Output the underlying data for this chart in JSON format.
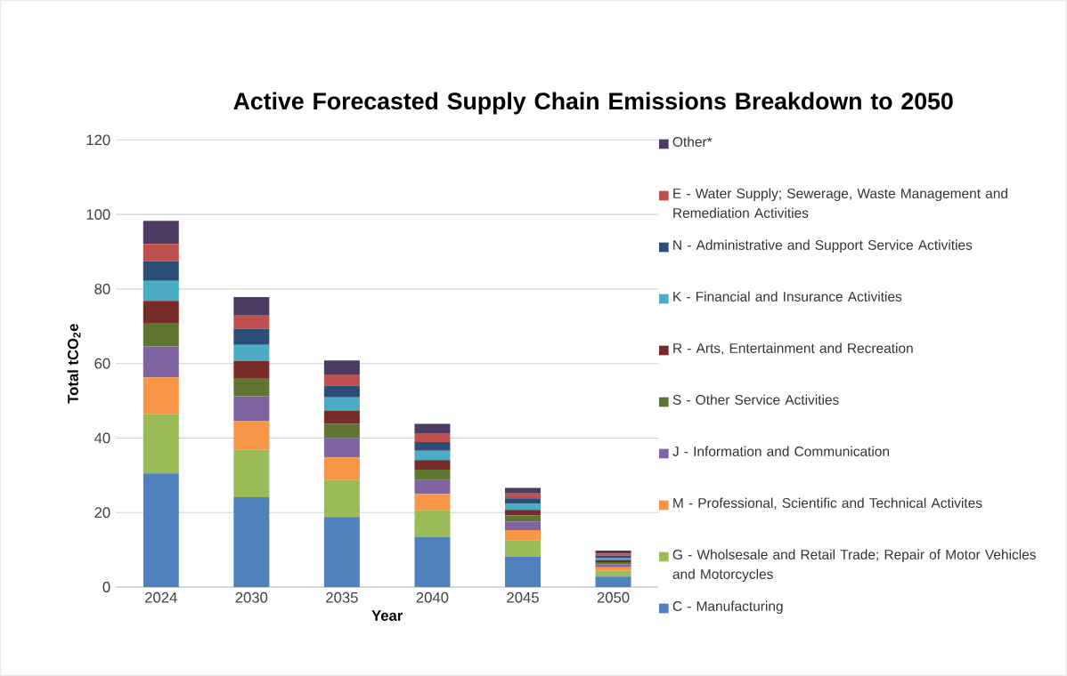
{
  "chart_data": {
    "type": "bar",
    "stacked": true,
    "title": "Active Forecasted Supply Chain Emissions Breakdown to 2050",
    "xlabel": "Year",
    "ylabel": "Total tCO$_{2}$e",
    "categories": [
      "2024",
      "2030",
      "2035",
      "2040",
      "2045",
      "2050"
    ],
    "ylim": [
      0,
      120
    ],
    "yticks": [
      0,
      20,
      40,
      60,
      80,
      100,
      120
    ],
    "grid": "y",
    "legend": "right",
    "series": [
      {
        "name": "C - Manufacturing",
        "color": "#4f81bd",
        "values": [
          30.5,
          24.1,
          18.8,
          13.4,
          8.2,
          2.8
        ]
      },
      {
        "name": "G - Wholsesale and Retail Trade; Repair of Motor Vehicles and Motorcycles",
        "color": "#9bbb59",
        "values": [
          16.0,
          12.7,
          9.9,
          7.2,
          4.4,
          1.6
        ]
      },
      {
        "name": "M - Professional, Scientific and Technical Activites",
        "color": "#f79646",
        "values": [
          9.8,
          7.7,
          6.1,
          4.4,
          2.7,
          0.9
        ]
      },
      {
        "name": "J - Information and Communication",
        "color": "#8064a2",
        "values": [
          8.3,
          6.7,
          5.2,
          3.7,
          2.3,
          0.8
        ]
      },
      {
        "name": "S - Other Service Activities",
        "color": "#5f7530",
        "values": [
          6.3,
          4.9,
          3.8,
          2.8,
          1.6,
          0.6
        ]
      },
      {
        "name": "R - Arts, Entertainment and Recreation",
        "color": "#772c2a",
        "values": [
          5.9,
          4.6,
          3.6,
          2.6,
          1.5,
          0.6
        ]
      },
      {
        "name": "K - Financial and Insurance Activities",
        "color": "#4bacc6",
        "values": [
          5.4,
          4.3,
          3.5,
          2.5,
          1.6,
          0.6
        ]
      },
      {
        "name": "N - Administrative and Support Service Activities",
        "color": "#2c4d75",
        "values": [
          5.3,
          4.3,
          3.2,
          2.3,
          1.5,
          0.5
        ]
      },
      {
        "name": "E - Water Supply; Sewerage, Waste Management and Remediation Activities",
        "color": "#c0504d",
        "values": [
          4.6,
          3.6,
          2.8,
          2.2,
          1.3,
          0.6
        ]
      },
      {
        "name": "Other*",
        "color": "#4d3b62",
        "values": [
          6.2,
          4.9,
          3.9,
          2.7,
          1.5,
          0.8
        ]
      }
    ]
  }
}
